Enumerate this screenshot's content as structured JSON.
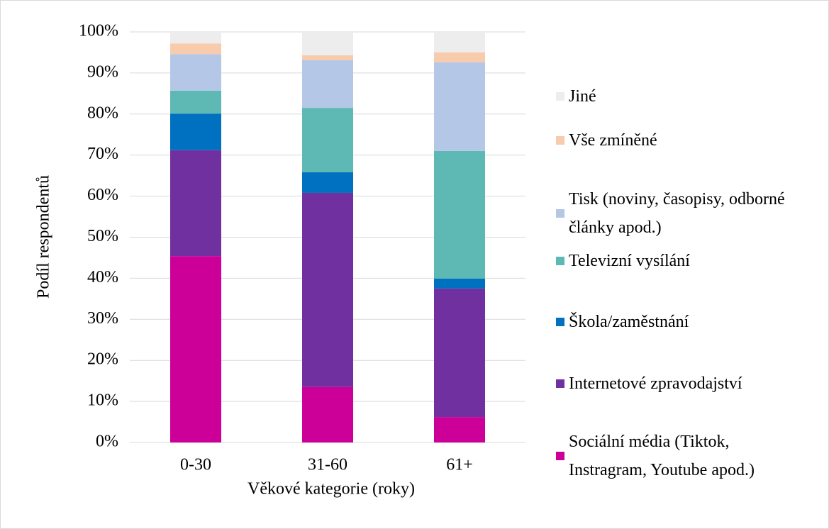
{
  "chart_data": {
    "type": "stacked_bar",
    "x_label": "Věkové kategorie (roky)",
    "y_label": "Podíl respondentů",
    "categories": [
      "0-30",
      "31-60",
      "61+"
    ],
    "series": [
      {
        "name": "Sociální média (Tiktok, Instragram, Youtube apod.)",
        "color": "#cc0099",
        "values": [
          45.4,
          13.5,
          6.2
        ]
      },
      {
        "name": "Internetové zpravodajství",
        "color": "#7030a0",
        "values": [
          25.8,
          47.3,
          31.3
        ]
      },
      {
        "name": "Škola/zaměstnání",
        "color": "#0070c0",
        "values": [
          8.9,
          5.0,
          2.4
        ]
      },
      {
        "name": "Televizní vysílání",
        "color": "#5eb9b4",
        "values": [
          5.6,
          15.7,
          31.1
        ]
      },
      {
        "name": "Tisk (noviny, časopisy, odborné články apod.)",
        "color": "#b4c7e7",
        "values": [
          8.9,
          11.6,
          21.6
        ]
      },
      {
        "name": "Vše zmíněné",
        "color": "#f8cbad",
        "values": [
          2.6,
          1.2,
          2.4
        ]
      },
      {
        "name": "Jiné",
        "color": "#ededed",
        "values": [
          2.8,
          5.7,
          5.0
        ]
      }
    ],
    "ylim": [
      0,
      100
    ],
    "yticks": [
      {
        "value": 0,
        "label": "0%"
      },
      {
        "value": 10,
        "label": "10%"
      },
      {
        "value": 20,
        "label": "20%"
      },
      {
        "value": 30,
        "label": "30%"
      },
      {
        "value": 40,
        "label": "40%"
      },
      {
        "value": 50,
        "label": "50%"
      },
      {
        "value": 60,
        "label": "60%"
      },
      {
        "value": 70,
        "label": "70%"
      },
      {
        "value": 80,
        "label": "80%"
      },
      {
        "value": 90,
        "label": "90%"
      },
      {
        "value": 100,
        "label": "100%"
      }
    ],
    "grid": true,
    "legend": "right"
  }
}
